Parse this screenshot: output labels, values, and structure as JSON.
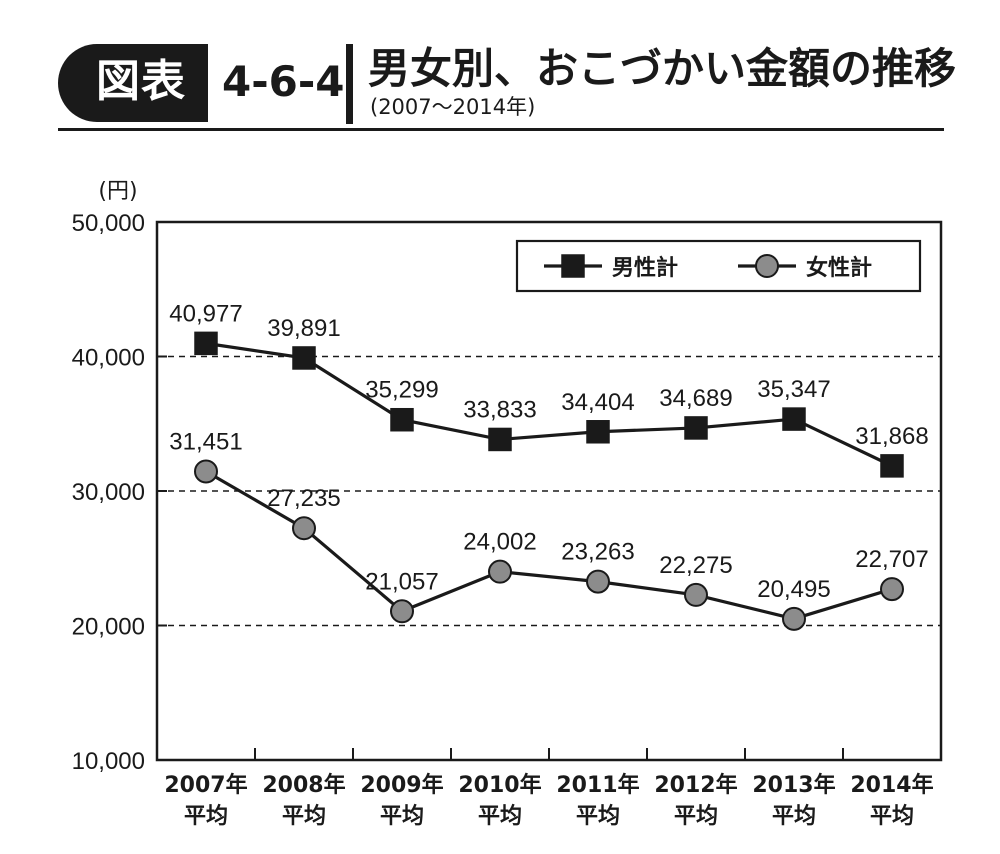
{
  "header": {
    "badge": "図表",
    "code": "4-6-4",
    "title": "男女別、おこづかい金額の推移",
    "subtitle": "(2007〜2014年)"
  },
  "chart_data": {
    "type": "line",
    "ylabel": "(円)",
    "ylim": [
      10000,
      50000
    ],
    "yticks": [
      "50,000",
      "40,000",
      "30,000",
      "20,000",
      "10,000"
    ],
    "ytick_values": [
      50000,
      40000,
      30000,
      20000,
      10000
    ],
    "grid": "dashed horizontal at 20,000 / 30,000 / 40,000",
    "legend_position": "top-right",
    "categories": [
      [
        "2007年",
        "平均"
      ],
      [
        "2008年",
        "平均"
      ],
      [
        "2009年",
        "平均"
      ],
      [
        "2010年",
        "平均"
      ],
      [
        "2011年",
        "平均"
      ],
      [
        "2012年",
        "平均"
      ],
      [
        "2013年",
        "平均"
      ],
      [
        "2014年",
        "平均"
      ]
    ],
    "series": [
      {
        "name": "男性計",
        "marker": "square",
        "color": "#1a1a1a",
        "values": [
          40977,
          39891,
          35299,
          33833,
          34404,
          34689,
          35347,
          31868
        ],
        "labels": [
          "40,977",
          "39,891",
          "35,299",
          "33,833",
          "34,404",
          "34,689",
          "35,347",
          "31,868"
        ]
      },
      {
        "name": "女性計",
        "marker": "circle",
        "color": "#8c8c8c",
        "values": [
          31451,
          27235,
          21057,
          24002,
          23263,
          22275,
          20495,
          22707
        ],
        "labels": [
          "31,451",
          "27,235",
          "21,057",
          "24,002",
          "23,263",
          "22,275",
          "20,495",
          "22,707"
        ]
      }
    ]
  }
}
